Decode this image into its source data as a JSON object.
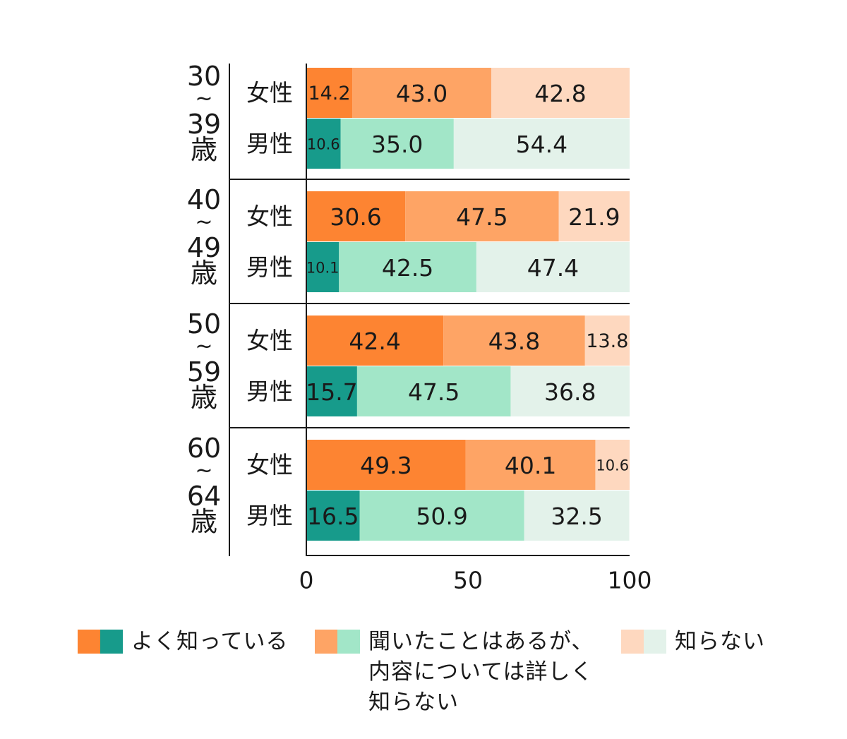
{
  "chart_data": {
    "type": "bar",
    "orientation": "horizontal",
    "stacked": true,
    "title": "",
    "xlabel": "",
    "ylabel": "",
    "xlim": [
      0,
      100
    ],
    "x_ticks": [
      "0",
      "50",
      "100"
    ],
    "groups": [
      {
        "label_lines": [
          "30",
          "~",
          "39",
          "歳"
        ],
        "rows": [
          {
            "label": "女性",
            "values": [
              14.2,
              43.0,
              42.8
            ],
            "value_labels": [
              "14.2",
              "43.0",
              "42.8"
            ]
          },
          {
            "label": "男性",
            "values": [
              10.6,
              35.0,
              54.4
            ],
            "value_labels": [
              "10.6",
              "35.0",
              "54.4"
            ]
          }
        ]
      },
      {
        "label_lines": [
          "40",
          "~",
          "49",
          "歳"
        ],
        "rows": [
          {
            "label": "女性",
            "values": [
              30.6,
              47.5,
              21.9
            ],
            "value_labels": [
              "30.6",
              "47.5",
              "21.9"
            ]
          },
          {
            "label": "男性",
            "values": [
              10.1,
              42.5,
              47.4
            ],
            "value_labels": [
              "10.1",
              "42.5",
              "47.4"
            ]
          }
        ]
      },
      {
        "label_lines": [
          "50",
          "~",
          "59",
          "歳"
        ],
        "rows": [
          {
            "label": "女性",
            "values": [
              42.4,
              43.8,
              13.8
            ],
            "value_labels": [
              "42.4",
              "43.8",
              "13.8"
            ]
          },
          {
            "label": "男性",
            "values": [
              15.7,
              47.5,
              36.8
            ],
            "value_labels": [
              "15.7",
              "47.5",
              "36.8"
            ]
          }
        ]
      },
      {
        "label_lines": [
          "60",
          "~",
          "64",
          "歳"
        ],
        "rows": [
          {
            "label": "女性",
            "values": [
              49.3,
              40.1,
              10.6
            ],
            "value_labels": [
              "49.3",
              "40.1",
              "10.6"
            ]
          },
          {
            "label": "男性",
            "values": [
              16.5,
              50.9,
              32.5
            ],
            "value_labels": [
              "16.5",
              "50.9",
              "32.5"
            ]
          }
        ]
      }
    ],
    "series": [
      {
        "name": "よく知っている",
        "colors": {
          "女性": "#fd8432",
          "男性": "#179b8b"
        }
      },
      {
        "name": "聞いたことはあるが、内容については詳しく知らない",
        "colors": {
          "女性": "#fea465",
          "男性": "#a2e6c8"
        }
      },
      {
        "name": "知らない",
        "colors": {
          "女性": "#fed8bf",
          "男性": "#e3f2ea"
        }
      }
    ],
    "legend_position": "bottom"
  },
  "legend": [
    {
      "label": "よく知っている",
      "colors": [
        "#fd8432",
        "#179b8b"
      ]
    },
    {
      "label": "聞いたことはあるが、\n内容については詳しく\n知らない",
      "colors": [
        "#fea465",
        "#a2e6c8"
      ]
    },
    {
      "label": "知らない",
      "colors": [
        "#fed8bf",
        "#e3f2ea"
      ]
    }
  ]
}
